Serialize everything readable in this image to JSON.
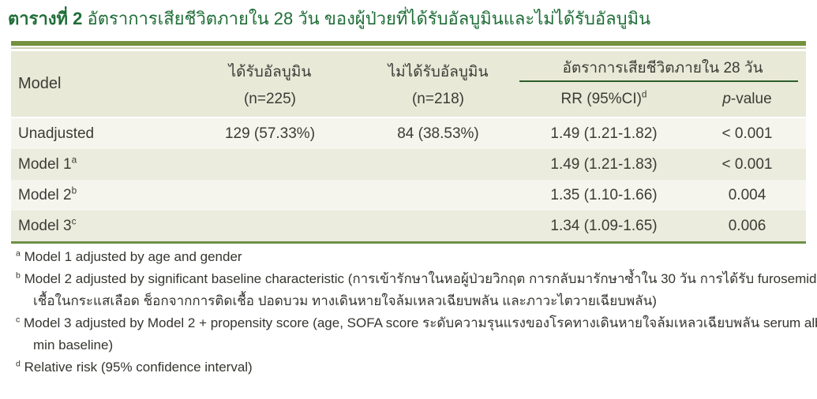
{
  "title": {
    "bold": "ตารางที่ 2",
    "rest": " อัตราการเสียชีวิตภายใน 28 วัน ของผู้ป่วยที่ได้รับอัลบูมินและไม่ได้รับอัลบูมิน"
  },
  "table": {
    "header": {
      "model": "Model",
      "albumin_line1": "ได้รับอัลบูมิน",
      "albumin_line2": "(n=225)",
      "no_albumin_line1": "ไม่ได้รับอัลบูมิน",
      "no_albumin_line2": "(n=218)",
      "mortality_span": "อัตราการเสียชีวิตภายใน 28 วัน",
      "rr_label": "RR (95%CI)",
      "rr_sup": "d",
      "p_italic": "p",
      "p_rest": "-value"
    },
    "rows": [
      {
        "model": "Unadjusted",
        "sup": "",
        "albumin": "129 (57.33%)",
        "no_albumin": "84 (38.53%)",
        "rr": "1.49 (1.21-1.82)",
        "p": "< 0.001"
      },
      {
        "model": "Model 1",
        "sup": "a",
        "albumin": "",
        "no_albumin": "",
        "rr": "1.49 (1.21-1.83)",
        "p": "< 0.001"
      },
      {
        "model": "Model 2",
        "sup": "b",
        "albumin": "",
        "no_albumin": "",
        "rr": "1.35 (1.10-1.66)",
        "p": "0.004"
      },
      {
        "model": "Model 3",
        "sup": "c",
        "albumin": "",
        "no_albumin": "",
        "rr": "1.34 (1.09-1.65)",
        "p": "0.006"
      }
    ]
  },
  "footnotes": [
    {
      "marker": "a",
      "line1": "Model 1 adjusted by age and gender"
    },
    {
      "marker": "b",
      "line1": "Model 2 adjusted by significant baseline characteristic (การเข้ารักษาในหอผู้ป่วยวิกฤต การกลับมารักษาซ้ำใน 30 วัน การได้รับ furosemide ติด",
      "line2": "เชื้อในกระแสเลือด ช็อกจากการติดเชื้อ ปอดบวม ทางเดินหายใจล้มเหลวเฉียบพลัน และภาวะไตวายเฉียบพลัน)"
    },
    {
      "marker": "c",
      "line1": "Model 3 adjusted by Model 2 + propensity score (age, SOFA score ระดับความรุนแรงของโรคทางเดินหายใจล้มเหลวเฉียบพลัน serum albu-",
      "line2": "min baseline)"
    },
    {
      "marker": "d",
      "line1": "Relative risk (95% confidence interval)"
    }
  ],
  "colors": {
    "title_green": "#1f6e38",
    "top_bar_olive": "#74913e",
    "header_bg": "#e8e9d7",
    "row_light": "#f5f5ee",
    "row_green": "#ebecdd",
    "span_rule_dark_green": "#2f5d2c",
    "bottom_border_green": "#6e8f46"
  }
}
